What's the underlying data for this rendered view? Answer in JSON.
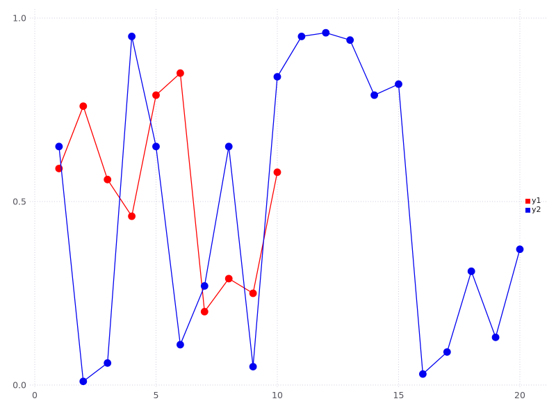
{
  "chart_data": {
    "type": "line",
    "title": "",
    "xlabel": "",
    "ylabel": "",
    "xlim": [
      0,
      20
    ],
    "ylim": [
      0.0,
      1.0
    ],
    "grid": "dotted",
    "legend_position": "right-outside",
    "marker": "filled-circle",
    "x_ticks": [
      {
        "label": "0",
        "value": 0
      },
      {
        "label": "5",
        "value": 5
      },
      {
        "label": "10",
        "value": 10
      },
      {
        "label": "15",
        "value": 15
      },
      {
        "label": "20",
        "value": 20
      }
    ],
    "y_ticks": [
      {
        "label": "0.0",
        "value": 0.0
      },
      {
        "label": "0.5",
        "value": 0.5
      },
      {
        "label": "1.0",
        "value": 1.0
      }
    ],
    "series": [
      {
        "name": "y1",
        "color": "#ff0000",
        "x": [
          1,
          2,
          3,
          4,
          5,
          6,
          7,
          8,
          9,
          10
        ],
        "values": [
          0.59,
          0.76,
          0.56,
          0.46,
          0.79,
          0.85,
          0.2,
          0.29,
          0.25,
          0.58
        ]
      },
      {
        "name": "y2",
        "color": "#0202f0",
        "x": [
          1,
          2,
          3,
          4,
          5,
          6,
          7,
          8,
          9,
          10,
          11,
          12,
          13,
          14,
          15,
          16,
          17,
          18,
          19,
          20
        ],
        "values": [
          0.65,
          0.01,
          0.06,
          0.95,
          0.65,
          0.11,
          0.27,
          0.65,
          0.05,
          0.84,
          0.95,
          0.96,
          0.94,
          0.79,
          0.82,
          0.03,
          0.09,
          0.31,
          0.13,
          0.37
        ]
      }
    ]
  },
  "colors": {
    "background": "#ffffff",
    "grid": "#cdcdde",
    "tick_label": "#53535c",
    "legend_text": "#15151a"
  }
}
